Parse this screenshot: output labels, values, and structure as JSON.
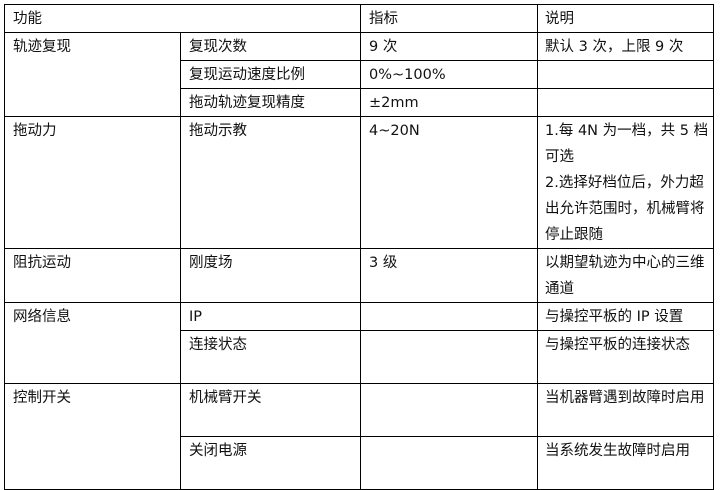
{
  "header": {
    "function": "功能",
    "indicator": "指标",
    "description": "说明"
  },
  "groups": [
    {
      "name": "轨迹复现",
      "rows": [
        {
          "item": "复现次数",
          "indicator": "9 次",
          "description": "默认 3 次，上限 9 次"
        },
        {
          "item": "复现运动速度比例",
          "indicator": "0%~100%",
          "description": ""
        },
        {
          "item": "拖动轨迹复现精度",
          "indicator": "±2mm",
          "description": ""
        }
      ]
    },
    {
      "name": "拖动力",
      "rows": [
        {
          "item": "拖动示教",
          "indicator": "4~20N",
          "description": "1.每 4N 为一档，共 5 档可选",
          "description2": "2.选择好档位后，外力超出允许范围时，机械臂将停止跟随"
        }
      ]
    },
    {
      "name": "阻抗运动",
      "rows": [
        {
          "item": "刚度场",
          "indicator": "3 级",
          "description": "以期望轨迹为中心的三维通道"
        }
      ]
    },
    {
      "name": "网络信息",
      "rows": [
        {
          "item": "IP",
          "indicator": "",
          "description": "与操控平板的 IP 设置"
        },
        {
          "item": "连接状态",
          "indicator": "",
          "description": "与操控平板的连接状态"
        }
      ]
    },
    {
      "name": "控制开关",
      "rows": [
        {
          "item": "机械臂开关",
          "indicator": "",
          "description": "当机器臂遇到故障时启用"
        },
        {
          "item": "关闭电源",
          "indicator": "",
          "description": "当系统发生故障时启用"
        }
      ]
    }
  ]
}
